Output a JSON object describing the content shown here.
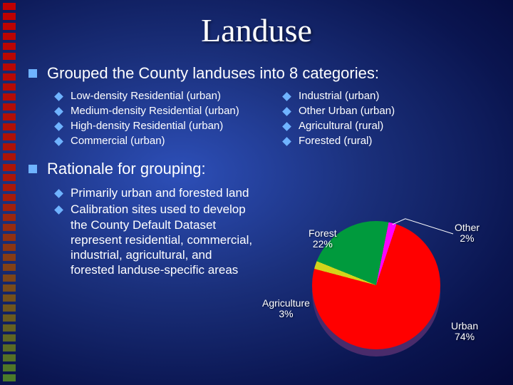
{
  "title": "Landuse",
  "bullets": {
    "main1": "Grouped the County landuses into 8 categories:",
    "main2": "Rationale for grouping:"
  },
  "categories_left": [
    "Low-density Residential (urban)",
    "Medium-density Residential (urban)",
    "High-density Residential (urban)",
    "Commercial (urban)"
  ],
  "categories_right": [
    "Industrial (urban)",
    "Other Urban (urban)",
    "Agricultural (rural)",
    "Forested (rural)"
  ],
  "rationale": [
    "Primarily urban and forested land",
    "Calibration sites used to develop the County Default Dataset represent residential, commercial, industrial, agricultural, and forested landuse-specific areas"
  ],
  "pie": {
    "type": "pie",
    "background_color": "transparent",
    "slices": [
      {
        "label": "Urban",
        "pct": 74,
        "pct_str": "74%",
        "color": "#ff0000"
      },
      {
        "label": "Forest",
        "pct": 22,
        "pct_str": "22%",
        "color": "#009a3d"
      },
      {
        "label": "Agriculture",
        "pct": 3,
        "pct_str": "3%",
        "color": "#d4d41a"
      },
      {
        "label": "Other",
        "pct": 2,
        "pct_str": "2%",
        "color": "#ff00ff"
      }
    ],
    "shadow_color": "#4a2b6b",
    "label_color": "#ffffff",
    "label_fontsize": 14
  },
  "leftbar_colors": [
    "#c00000",
    "#4a7a2a"
  ],
  "bullet_color": "#6fb3ff"
}
